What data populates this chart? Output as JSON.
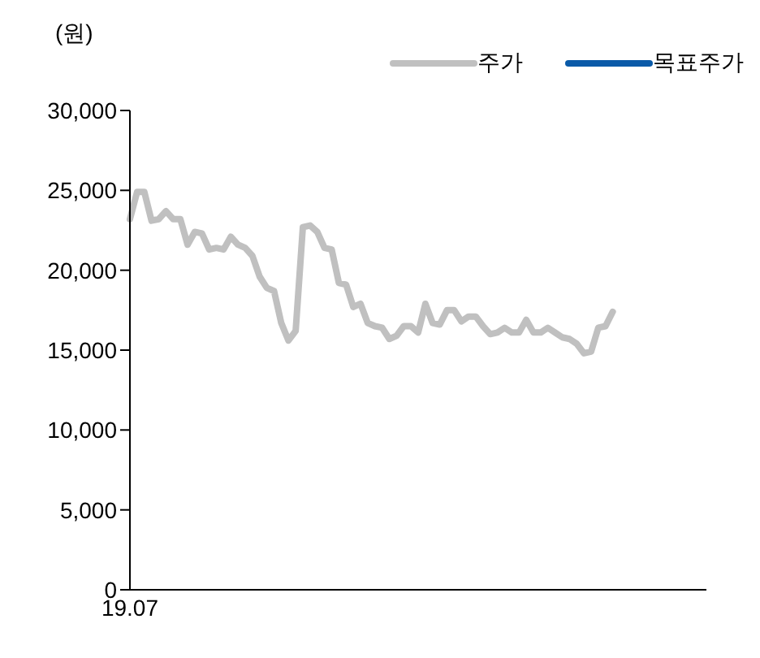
{
  "chart_data": {
    "type": "line",
    "ylabel": "(원)",
    "categories": [
      "19.07",
      null,
      null,
      null,
      null,
      null,
      null,
      null,
      null,
      null,
      null,
      null,
      null,
      null,
      null,
      null,
      null,
      null,
      null,
      null,
      null,
      null,
      null,
      null,
      null,
      null,
      null,
      null,
      null,
      null,
      null,
      null,
      null,
      null,
      null,
      null,
      null,
      null,
      null,
      null,
      null,
      null,
      null,
      null,
      null,
      null,
      null,
      null,
      null,
      null,
      null,
      null,
      null,
      null,
      null,
      null,
      null,
      null,
      null,
      null,
      null,
      null,
      null,
      null,
      null,
      null,
      null,
      null,
      null,
      null,
      null,
      null,
      null,
      null,
      null,
      null,
      null,
      null,
      null,
      null,
      null
    ],
    "series": [
      {
        "name": "주가",
        "color": "#c0c0c0",
        "values": [
          23200,
          24900,
          24900,
          23100,
          23200,
          23700,
          23200,
          23200,
          21600,
          22400,
          22300,
          21300,
          21400,
          21300,
          22100,
          21600,
          21400,
          20900,
          19600,
          18900,
          18700,
          16700,
          15600,
          16200,
          22700,
          22800,
          22400,
          21400,
          21300,
          19200,
          19100,
          17700,
          17900,
          16700,
          16500,
          16400,
          15700,
          15900,
          16500,
          16500,
          16100,
          17900,
          16700,
          16600,
          17500,
          17500,
          16800,
          17100,
          17100,
          16500,
          16000,
          16100,
          16400,
          16100,
          16100,
          16900,
          16100,
          16100,
          16400,
          16100,
          15800,
          15700,
          15400,
          14800,
          14900,
          16400,
          16500,
          17400,
          null,
          null,
          null,
          null,
          null,
          null,
          null,
          null,
          null,
          null,
          null,
          null,
          null
        ]
      },
      {
        "name": "목표주가",
        "color": "#0a5aa8",
        "values": [
          null,
          null,
          null,
          null,
          null,
          null,
          null,
          null,
          null,
          null,
          null,
          null,
          null,
          null,
          null,
          null,
          null,
          null,
          null,
          null,
          null,
          null,
          null,
          null,
          null,
          null,
          null,
          null,
          null,
          null,
          null,
          null,
          null,
          null,
          null,
          null,
          null,
          null,
          null,
          null,
          null,
          null,
          null,
          null,
          null,
          null,
          null,
          null,
          null,
          null,
          null,
          null,
          null,
          null,
          null,
          null,
          null,
          null,
          null,
          null,
          null,
          null,
          null,
          null,
          null,
          null,
          null,
          null,
          null,
          null,
          null,
          null,
          null,
          null,
          null,
          null,
          null,
          null,
          null,
          null,
          null
        ]
      }
    ],
    "ylim": [
      0,
      30000
    ],
    "yticks": [
      0,
      {
        "value": 5000,
        "label": "5,000"
      },
      {
        "value": 10000,
        "label": "10,000"
      },
      {
        "value": 15000,
        "label": "15,000"
      },
      {
        "value": 20000,
        "label": "20,000"
      },
      {
        "value": 25000,
        "label": "25,000"
      },
      {
        "value": 30000,
        "label": "30,000"
      }
    ],
    "grid": false,
    "legend": "top right",
    "marker": "none",
    "line_style": "solid"
  }
}
